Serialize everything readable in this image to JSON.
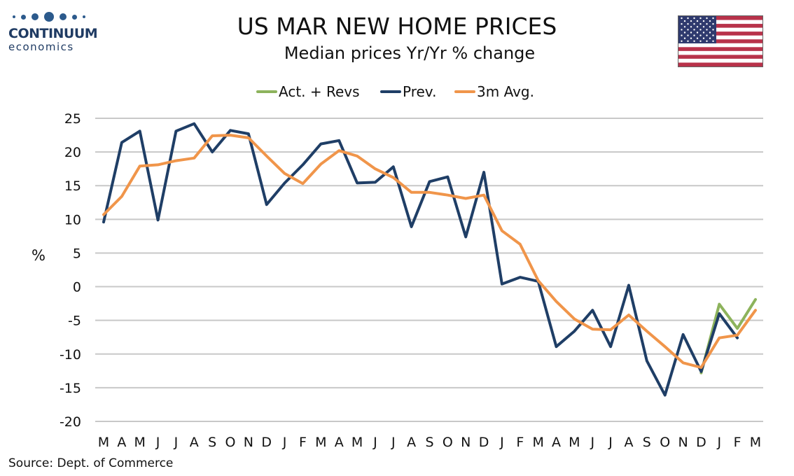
{
  "logo": {
    "word": "CONTINUUM",
    "sub": "economics"
  },
  "title": "US MAR NEW HOME PRICES",
  "subtitle": "Median prices Yr/Yr % change",
  "source": "Source: Dept. of Commerce",
  "flag": "us-flag-icon",
  "colors": {
    "act": "#8db35c",
    "prev": "#1f3e66",
    "avg": "#f0954a",
    "grid": "#c8c8c8",
    "flag_red": "#b8324a",
    "flag_blue": "#2f3a6e"
  },
  "chart_data": {
    "type": "line",
    "title": "US MAR NEW HOME PRICES",
    "subtitle": "Median prices Yr/Yr % change",
    "ylabel": "%",
    "xlabel": "",
    "ylim": [
      -20,
      25
    ],
    "yticks": [
      25,
      20,
      15,
      10,
      5,
      0,
      -5,
      -10,
      -15,
      -20
    ],
    "grid": "horizontal",
    "legend": "top-center",
    "categories": [
      "M",
      "A",
      "M",
      "J",
      "J",
      "A",
      "S",
      "O",
      "N",
      "D",
      "J",
      "F",
      "M",
      "A",
      "M",
      "J",
      "J",
      "A",
      "S",
      "O",
      "N",
      "D",
      "J",
      "F",
      "M",
      "A",
      "M",
      "J",
      "J",
      "A",
      "S",
      "O",
      "N",
      "D",
      "J",
      "F",
      "M"
    ],
    "series": [
      {
        "name": "Act. + Revs",
        "color": "#8db35c",
        "values": [
          null,
          null,
          null,
          null,
          null,
          null,
          null,
          null,
          null,
          null,
          null,
          null,
          null,
          null,
          null,
          null,
          null,
          null,
          null,
          null,
          null,
          null,
          null,
          null,
          null,
          null,
          null,
          null,
          null,
          null,
          null,
          null,
          null,
          -12.8,
          -2.6,
          -6.2,
          -1.9
        ]
      },
      {
        "name": "Prev.",
        "color": "#1f3e66",
        "values": [
          9.6,
          21.4,
          23.1,
          9.9,
          23.1,
          24.2,
          20.0,
          23.2,
          22.7,
          12.2,
          15.4,
          18.1,
          21.2,
          21.7,
          15.4,
          15.5,
          17.8,
          8.9,
          15.6,
          16.3,
          7.4,
          17.0,
          0.4,
          1.4,
          0.8,
          -8.9,
          -6.6,
          -3.5,
          -8.9,
          0.2,
          -11.0,
          -16.1,
          -7.1,
          -12.6,
          -4.0,
          -7.6,
          null
        ]
      },
      {
        "name": "3m Avg.",
        "color": "#f0954a",
        "values": [
          10.7,
          13.4,
          17.9,
          18.1,
          18.7,
          19.1,
          22.4,
          22.5,
          22.1,
          19.4,
          16.8,
          15.3,
          18.2,
          20.2,
          19.4,
          17.5,
          16.2,
          14.0,
          14.0,
          13.6,
          13.1,
          13.6,
          8.3,
          6.3,
          0.9,
          -2.2,
          -4.8,
          -6.3,
          -6.4,
          -4.2,
          -6.6,
          -8.9,
          -11.3,
          -12.0,
          -7.6,
          -7.2,
          -3.5
        ]
      }
    ]
  }
}
